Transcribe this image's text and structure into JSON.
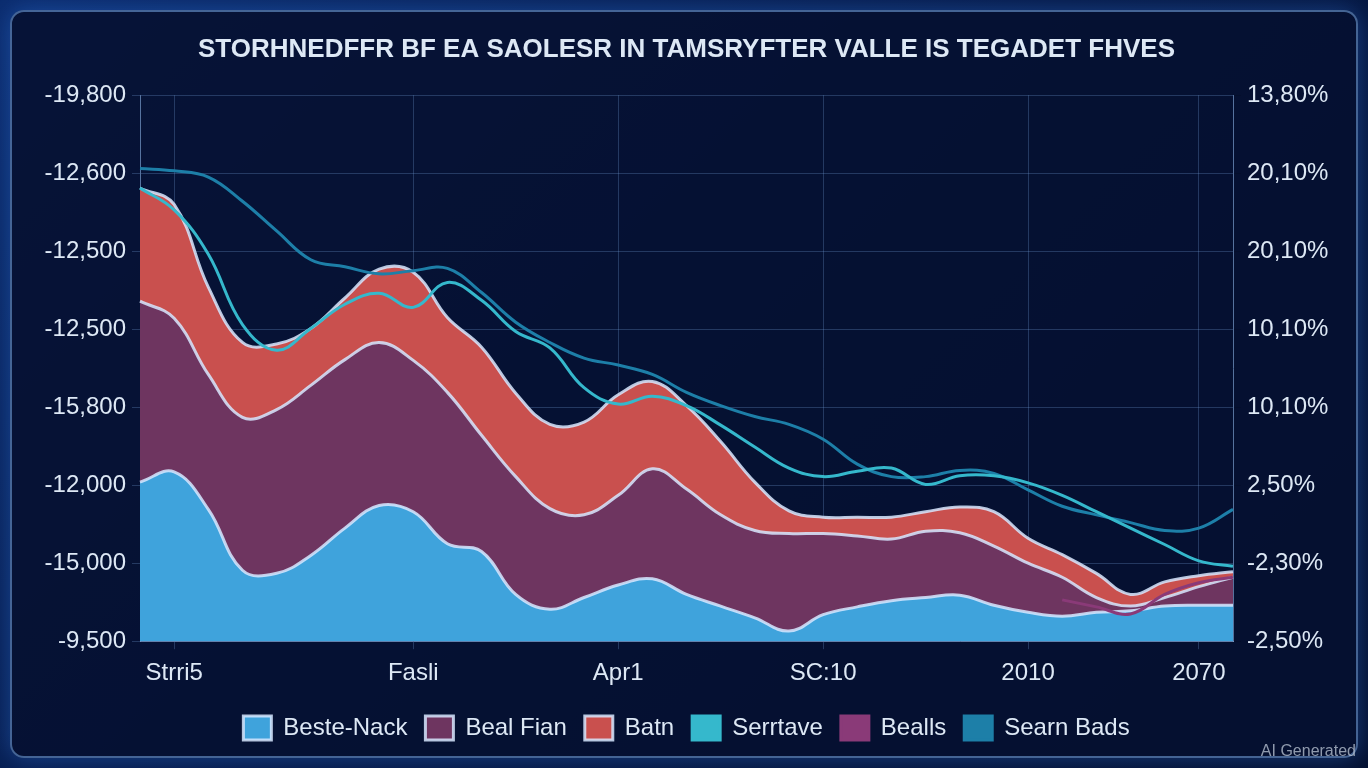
{
  "chart_data": {
    "type": "line",
    "title": "STORHNEDFFR BF EA SAOLESR IN TAMSRYFTER VALLE IS TEGADET FHVES",
    "categories": [
      null,
      "Strri5",
      null,
      null,
      null,
      null,
      null,
      null,
      "Fasli",
      null,
      null,
      null,
      null,
      null,
      "Apr1",
      null,
      null,
      null,
      null,
      null,
      "SC:10",
      null,
      null,
      null,
      null,
      null,
      "2010",
      null,
      null,
      null,
      null,
      "2070",
      null
    ],
    "series": [
      {
        "name": "Beste-Nack",
        "type": "area",
        "color": "#3fa3dc",
        "values": [
          2.04,
          2.17,
          1.69,
          0.91,
          0.87,
          1.1,
          1.45,
          1.74,
          1.66,
          1.25,
          1.15,
          0.6,
          0.41,
          0.56,
          0.72,
          0.8,
          0.6,
          0.45,
          0.3,
          0.13,
          0.34,
          0.44,
          0.52,
          0.56,
          0.59,
          0.46,
          0.37,
          0.32,
          0.37,
          0.39,
          0.45,
          0.46,
          0.46
        ]
      },
      {
        "name": "Beal Fian",
        "type": "area",
        "color": "#6e3560",
        "values": [
          4.36,
          4.14,
          3.42,
          2.87,
          2.97,
          3.28,
          3.61,
          3.83,
          3.6,
          3.19,
          2.64,
          2.11,
          1.7,
          1.62,
          1.87,
          2.21,
          1.95,
          1.62,
          1.42,
          1.38,
          1.38,
          1.35,
          1.31,
          1.41,
          1.39,
          1.22,
          1.0,
          0.82,
          0.56,
          0.45,
          0.56,
          0.7,
          0.82
        ]
      },
      {
        "name": "Batn",
        "type": "area",
        "color": "#c9504e",
        "values": [
          5.81,
          5.6,
          4.54,
          3.83,
          3.81,
          4.01,
          4.4,
          4.77,
          4.73,
          4.15,
          3.77,
          3.18,
          2.78,
          2.81,
          3.16,
          3.33,
          3.02,
          2.56,
          2.04,
          1.67,
          1.59,
          1.59,
          1.59,
          1.66,
          1.72,
          1.66,
          1.32,
          1.11,
          0.87,
          0.6,
          0.76,
          0.84,
          0.89
        ]
      },
      {
        "name": "Serrtave",
        "type": "line",
        "color": "#35b8cc",
        "values": [
          5.81,
          5.53,
          4.96,
          4.06,
          3.73,
          4.01,
          4.32,
          4.46,
          4.28,
          4.6,
          4.37,
          3.97,
          3.76,
          3.25,
          3.04,
          3.14,
          3.02,
          2.77,
          2.49,
          2.22,
          2.11,
          2.18,
          2.22,
          2.01,
          2.12,
          2.12,
          2.03,
          1.87,
          1.66,
          1.45,
          1.24,
          1.03,
          0.96
        ]
      },
      {
        "name": "Bealls",
        "type": "line",
        "color": "#8a3a78",
        "values": [
          null,
          null,
          null,
          null,
          null,
          null,
          null,
          null,
          null,
          null,
          null,
          null,
          null,
          null,
          null,
          null,
          null,
          null,
          null,
          null,
          null,
          null,
          null,
          null,
          null,
          null,
          null,
          0.53,
          0.44,
          0.35,
          0.6,
          0.75,
          0.82
        ]
      },
      {
        "name": "Searn Bads",
        "type": "line",
        "color": "#1d7fa8",
        "values": [
          6.06,
          6.03,
          5.95,
          5.64,
          5.26,
          4.89,
          4.8,
          4.71,
          4.75,
          4.78,
          4.47,
          4.09,
          3.83,
          3.63,
          3.54,
          3.42,
          3.19,
          3.02,
          2.88,
          2.78,
          2.59,
          2.27,
          2.11,
          2.11,
          2.19,
          2.15,
          1.94,
          1.73,
          1.62,
          1.52,
          1.42,
          1.45,
          1.69
        ]
      }
    ],
    "ylim": [
      0,
      7
    ],
    "yticks": [
      0,
      1,
      2,
      3,
      4,
      5,
      6,
      7
    ],
    "y2lim": [
      0,
      7
    ],
    "y2ticks": [
      0,
      1,
      2,
      3,
      4,
      5,
      6,
      7
    ],
    "y_axis_labels": [
      "-9,500",
      "-15,000",
      "-12,000",
      "-15,800",
      "-12,500",
      "-12,500",
      "-12,600",
      "-19,800"
    ],
    "y2_axis_labels": [
      "-2,50%",
      "-2,30%",
      "2,50%",
      "10,10%",
      "10,10%",
      "20,10%",
      "20,10%",
      "13,80%"
    ],
    "tick_labels": "x",
    "grid": true,
    "legend": "bottom"
  },
  "watermark": "AI Generated"
}
